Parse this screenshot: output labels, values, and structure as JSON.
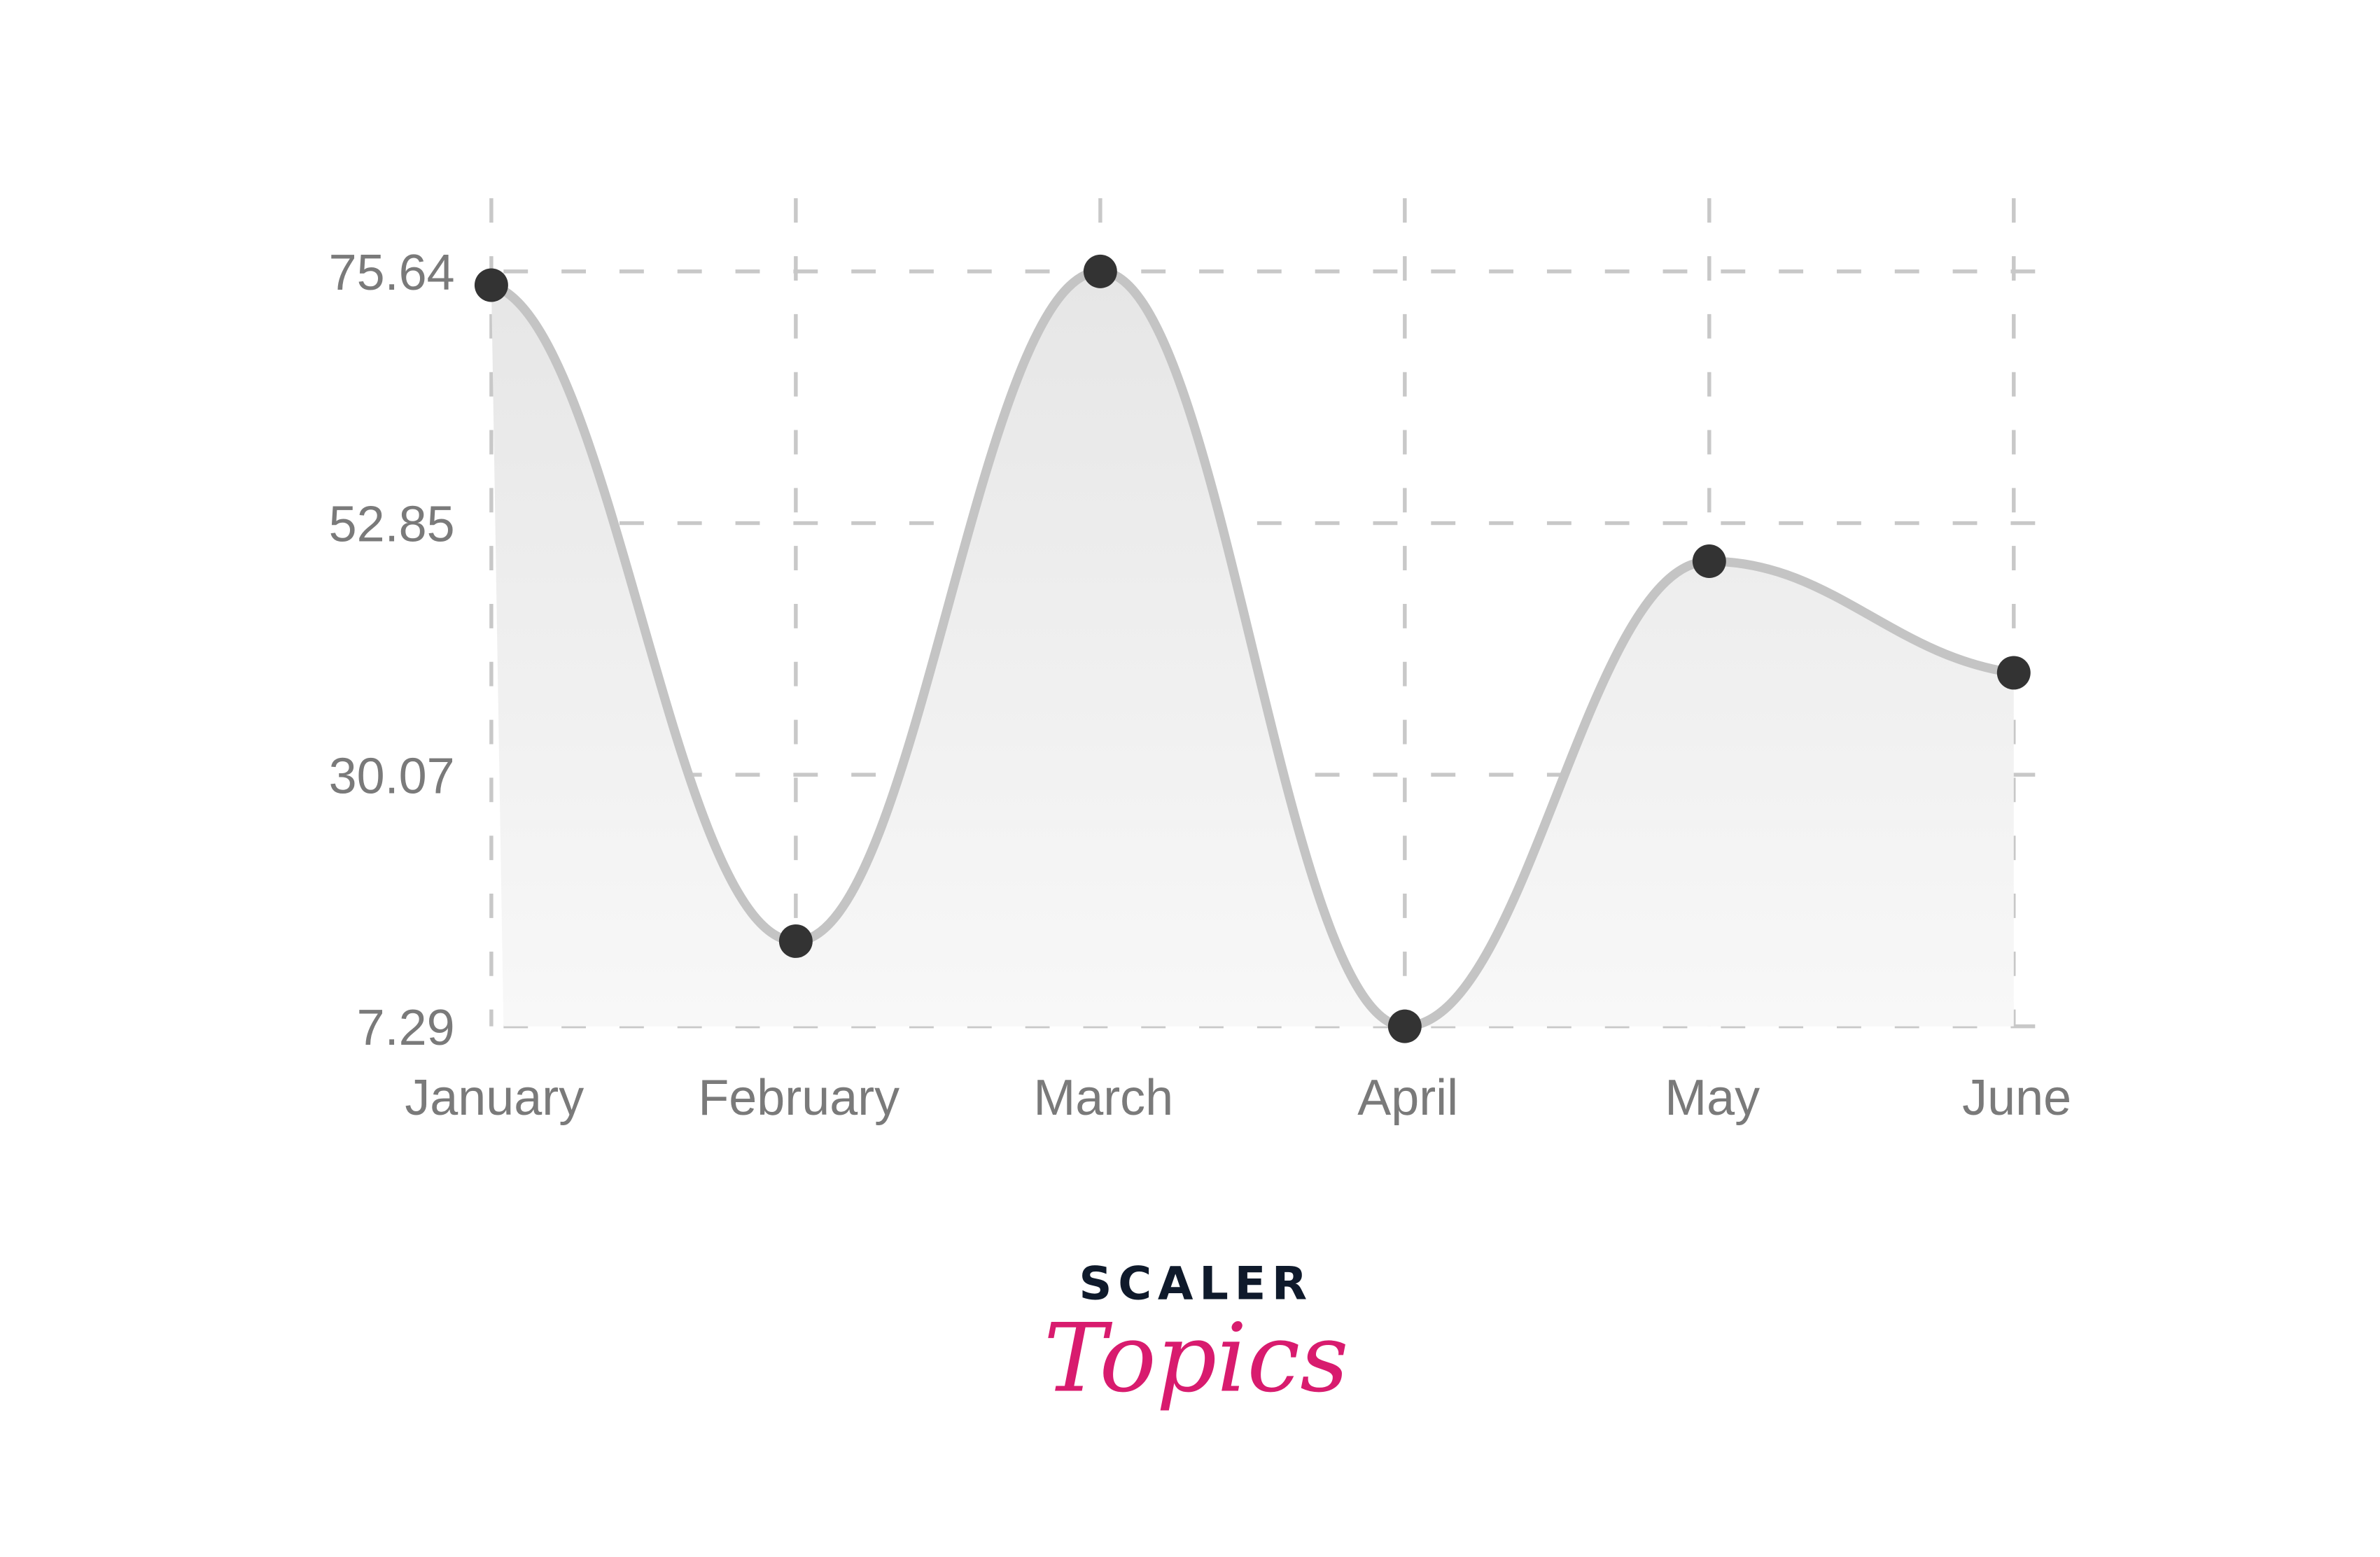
{
  "chart_data": {
    "type": "line",
    "smooth": true,
    "area_fill": true,
    "categories": [
      "January",
      "February",
      "March",
      "April",
      "May",
      "June"
    ],
    "values": [
      74.4,
      15.0,
      75.64,
      7.29,
      49.4,
      39.3
    ],
    "yticks": [
      "7.29",
      "30.07",
      "52.85",
      "75.64"
    ],
    "ylim": [
      7.29,
      75.64
    ],
    "grid": true,
    "grid_style": "dashed",
    "title": "",
    "xlabel": "",
    "ylabel": "",
    "colors": {
      "line": "#c4c4c4",
      "point": "#333333",
      "fill": "#ececec",
      "grid": "#c8c8c8",
      "tick_text": "#7a7a7a"
    }
  },
  "logo": {
    "line1": "SCALER",
    "line2": "Topics",
    "colors": {
      "line1": "#0f1a2b",
      "line2": "#d81b6e"
    }
  }
}
